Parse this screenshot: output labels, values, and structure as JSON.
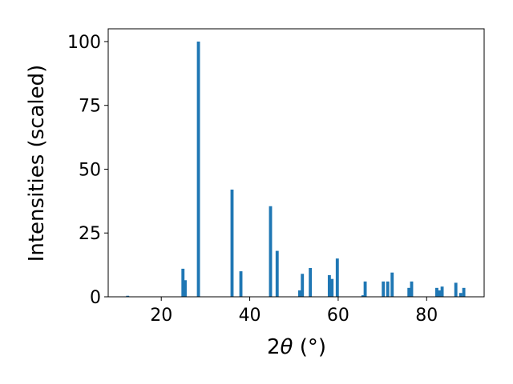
{
  "chart_data": {
    "type": "bar",
    "xlabel_main": "2",
    "xlabel_theta": "θ",
    "xlabel_unit": " (°)",
    "ylabel": "Intensities (scaled)",
    "xlim": [
      8,
      93
    ],
    "ylim": [
      0,
      105
    ],
    "x_ticks": [
      20,
      40,
      60,
      80
    ],
    "y_ticks": [
      0,
      25,
      50,
      75,
      100
    ],
    "bar_width": 0.7,
    "color": "#1f77b4",
    "grid": false,
    "points": [
      {
        "x": 12.4,
        "y": 0.4
      },
      {
        "x": 24.9,
        "y": 11
      },
      {
        "x": 25.4,
        "y": 6.5
      },
      {
        "x": 28.4,
        "y": 100
      },
      {
        "x": 36.0,
        "y": 42
      },
      {
        "x": 38.0,
        "y": 10
      },
      {
        "x": 44.7,
        "y": 35.5
      },
      {
        "x": 46.2,
        "y": 18
      },
      {
        "x": 51.3,
        "y": 2.5
      },
      {
        "x": 51.9,
        "y": 9
      },
      {
        "x": 53.7,
        "y": 11.3
      },
      {
        "x": 58.0,
        "y": 8.5
      },
      {
        "x": 58.6,
        "y": 7
      },
      {
        "x": 59.8,
        "y": 15
      },
      {
        "x": 65.6,
        "y": 0.6
      },
      {
        "x": 66.1,
        "y": 6
      },
      {
        "x": 70.2,
        "y": 6
      },
      {
        "x": 71.2,
        "y": 6
      },
      {
        "x": 72.2,
        "y": 9.5
      },
      {
        "x": 76.0,
        "y": 3.5
      },
      {
        "x": 76.6,
        "y": 6
      },
      {
        "x": 82.3,
        "y": 3.5
      },
      {
        "x": 82.9,
        "y": 2.5
      },
      {
        "x": 83.5,
        "y": 4
      },
      {
        "x": 86.6,
        "y": 5.5
      },
      {
        "x": 87.7,
        "y": 1.5
      },
      {
        "x": 88.4,
        "y": 3.5
      }
    ]
  }
}
